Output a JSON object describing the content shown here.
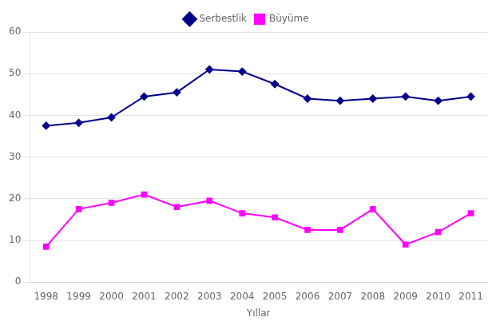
{
  "chart_data": {
    "type": "line",
    "x": [
      1998,
      1999,
      2000,
      2001,
      2002,
      2003,
      2004,
      2005,
      2006,
      2007,
      2008,
      2009,
      2010,
      2011
    ],
    "xlim": [
      1997.5,
      2011.5
    ],
    "xticks": [
      1998,
      1999,
      2000,
      2001,
      2002,
      2003,
      2004,
      2005,
      2006,
      2007,
      2008,
      2009,
      2010,
      2011
    ],
    "xlabel": "Yıllar",
    "series": [
      {
        "name": "Serbestlik",
        "color": "#00008B",
        "marker": "diamond",
        "values": [
          37.5,
          38.2,
          39.5,
          44.5,
          45.5,
          51.0,
          50.5,
          47.5,
          44.0,
          43.5,
          44.0,
          44.5,
          43.5,
          44.5
        ]
      },
      {
        "name": "Büyüme",
        "color": "#FF00FF",
        "marker": "square",
        "values": [
          8.5,
          17.5,
          19.0,
          21.0,
          18.0,
          19.5,
          16.5,
          15.5,
          12.5,
          12.5,
          17.5,
          9.0,
          12.0,
          16.5
        ]
      }
    ],
    "ylim": [
      0,
      60
    ],
    "yticks": [
      0,
      10,
      20,
      30,
      40,
      50,
      60
    ],
    "grid": "y",
    "legend": "top"
  }
}
